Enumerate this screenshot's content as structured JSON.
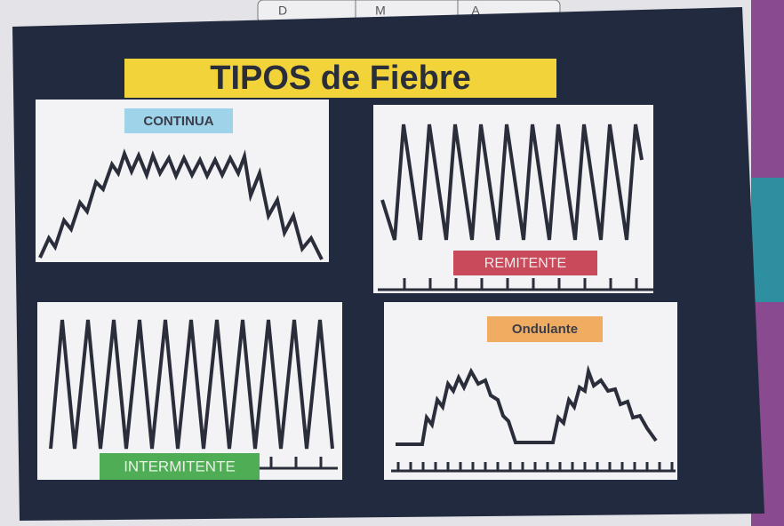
{
  "tabs": [
    "D",
    "M",
    "A"
  ],
  "title": "TIPOS de Fiebre",
  "panels": [
    {
      "label": "CONTINUA"
    },
    {
      "label": "REMITENTE"
    },
    {
      "label": "INTERMITENTE"
    },
    {
      "label": "Ondulante"
    }
  ]
}
